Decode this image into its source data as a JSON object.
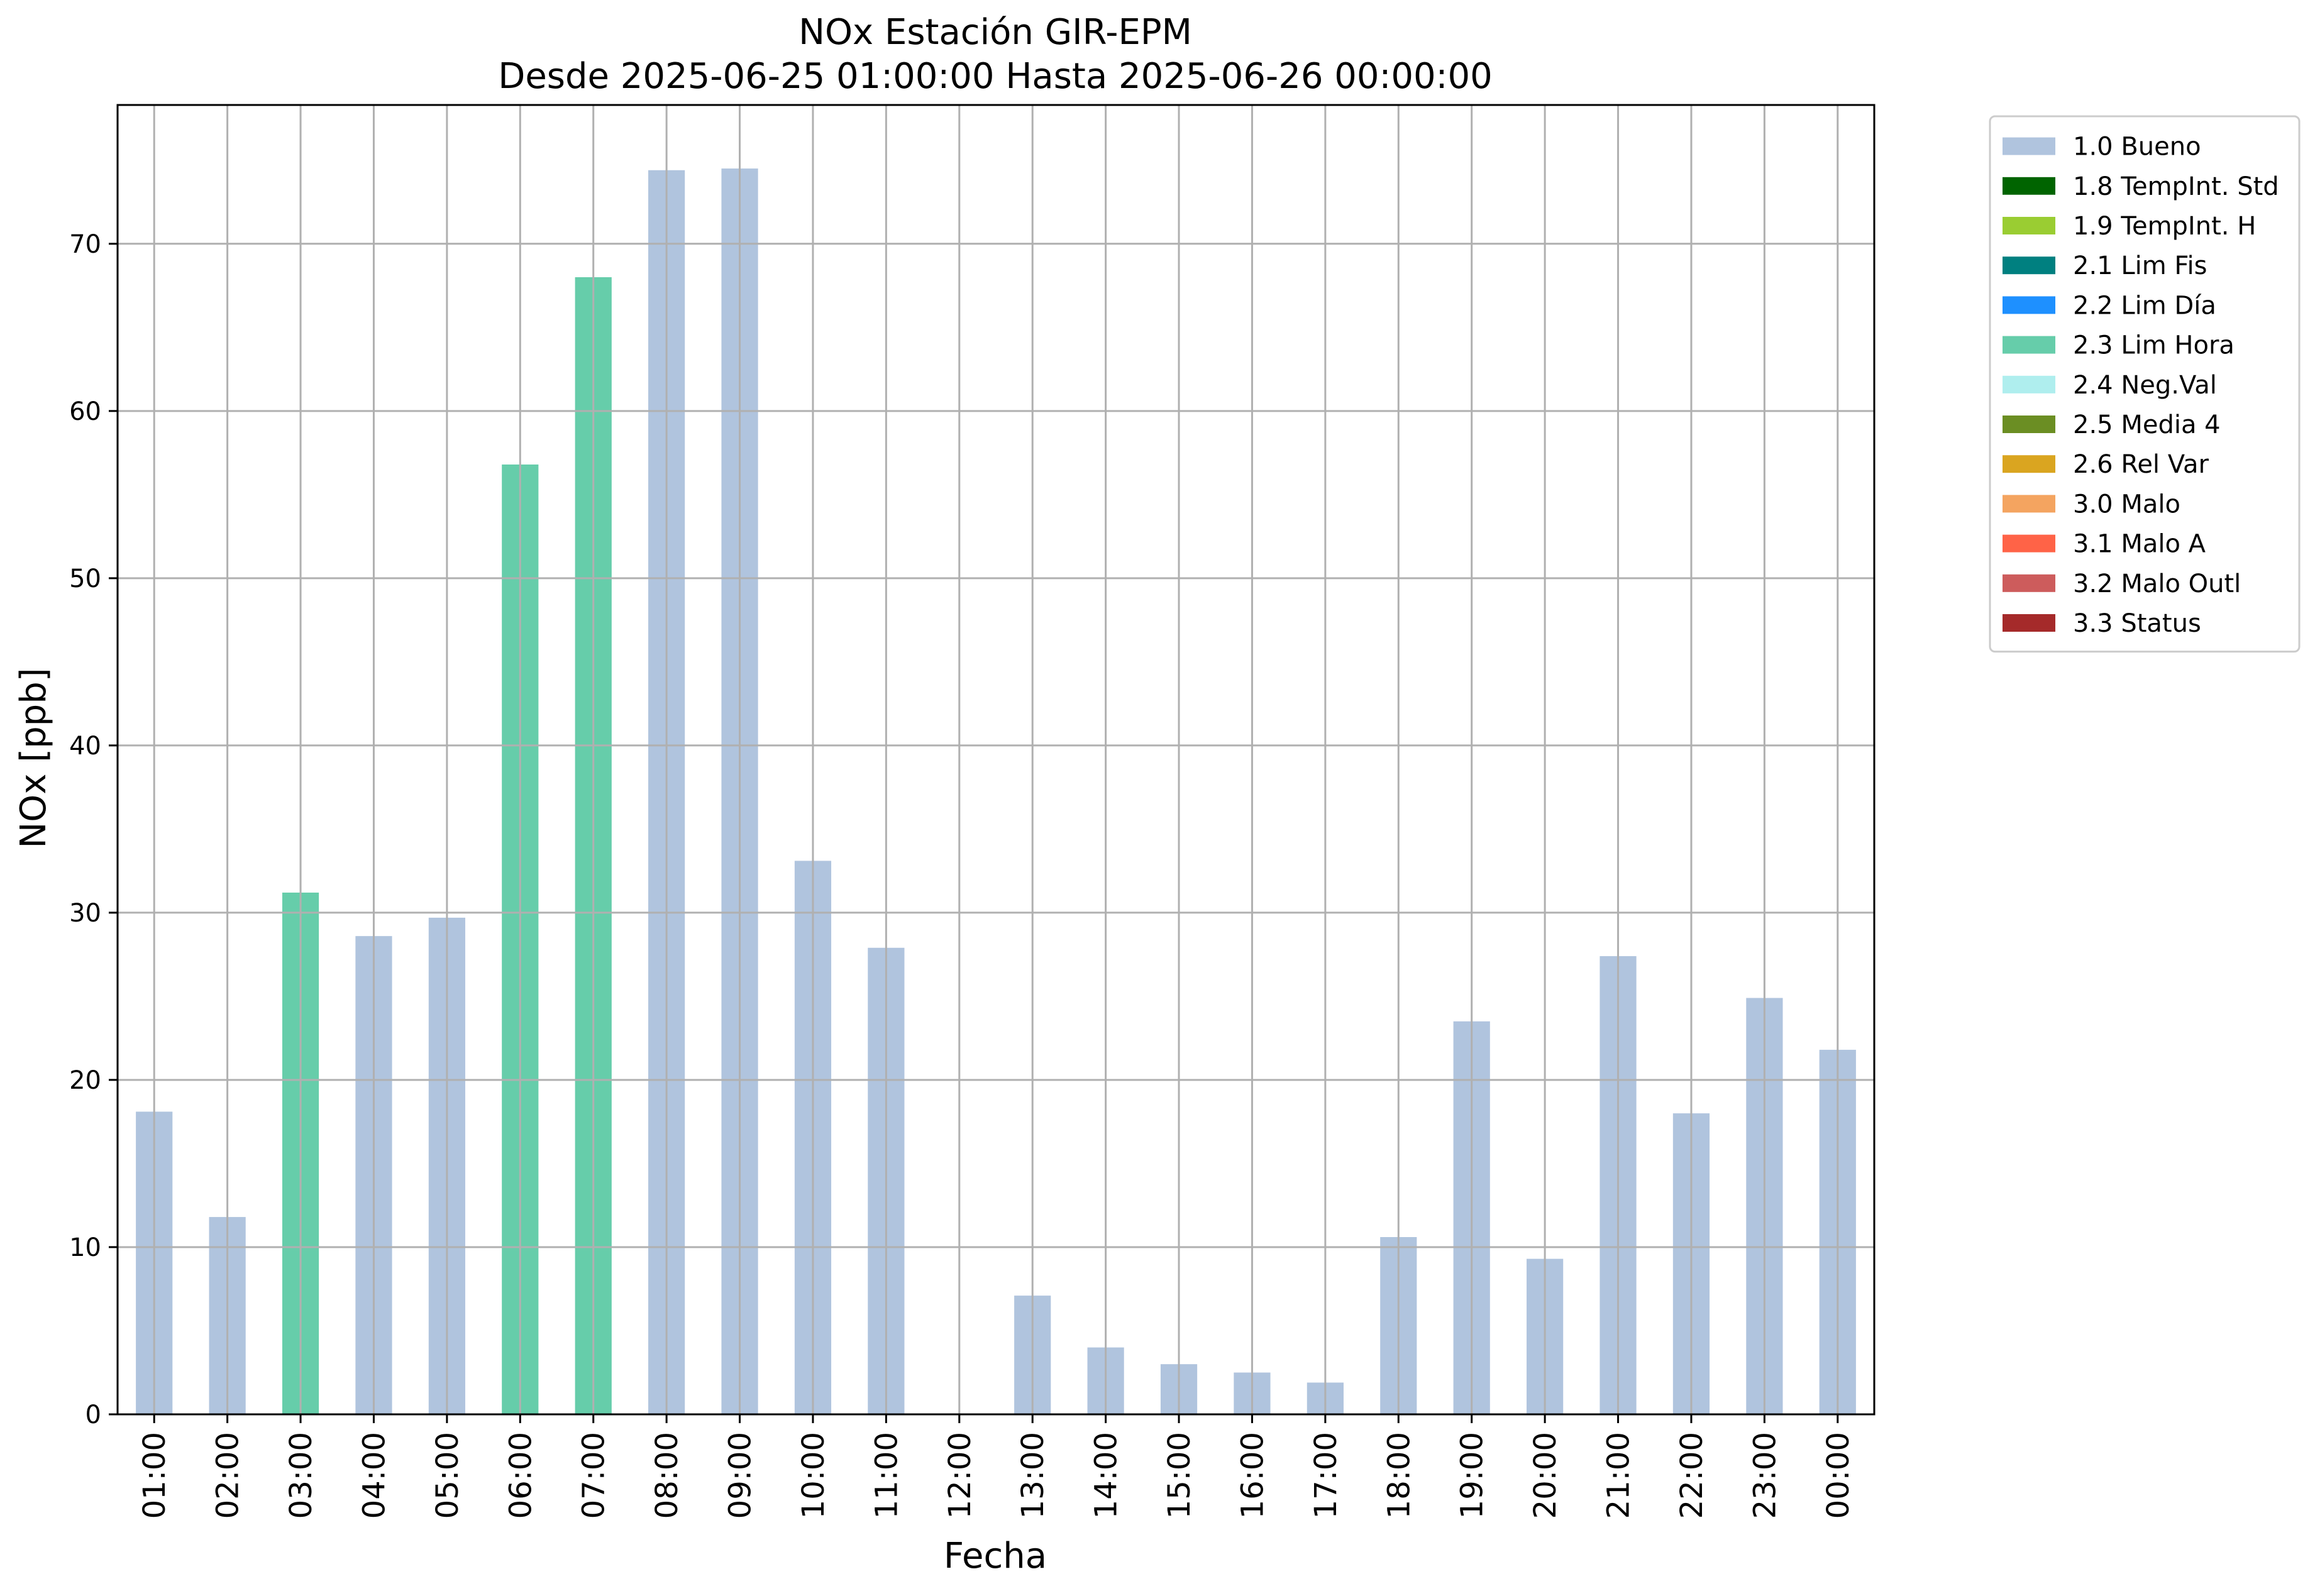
{
  "chart_data": {
    "type": "bar",
    "title_line1": "NOx Estación GIR-EPM",
    "title_line2": "Desde 2025-06-25 01:00:00 Hasta 2025-06-26 00:00:00",
    "xlabel": "Fecha",
    "ylabel": "NOx [ppb]",
    "ylim": [
      0,
      78.3
    ],
    "yticks": [
      0,
      10,
      20,
      30,
      40,
      50,
      60,
      70
    ],
    "grid": true,
    "legend_position": "outside-right-top",
    "categories": [
      "01:00",
      "02:00",
      "03:00",
      "04:00",
      "05:00",
      "06:00",
      "07:00",
      "08:00",
      "09:00",
      "10:00",
      "11:00",
      "12:00",
      "13:00",
      "14:00",
      "15:00",
      "16:00",
      "17:00",
      "18:00",
      "19:00",
      "20:00",
      "21:00",
      "22:00",
      "23:00",
      "00:00"
    ],
    "values": [
      18.1,
      11.8,
      31.2,
      28.6,
      29.7,
      56.8,
      68.0,
      74.4,
      74.5,
      33.1,
      27.9,
      null,
      7.1,
      4.0,
      3.0,
      2.5,
      1.9,
      10.6,
      23.5,
      9.3,
      27.4,
      18.0,
      24.9,
      21.8
    ],
    "flags": [
      "1.0 Bueno",
      "1.0 Bueno",
      "2.3 Lim Hora",
      "1.0 Bueno",
      "1.0 Bueno",
      "2.3 Lim Hora",
      "2.3 Lim Hora",
      "1.0 Bueno",
      "1.0 Bueno",
      "1.0 Bueno",
      "1.0 Bueno",
      null,
      "1.0 Bueno",
      "1.0 Bueno",
      "1.0 Bueno",
      "1.0 Bueno",
      "1.0 Bueno",
      "1.0 Bueno",
      "1.0 Bueno",
      "1.0 Bueno",
      "1.0 Bueno",
      "1.0 Bueno",
      "1.0 Bueno",
      "1.0 Bueno"
    ],
    "legend": [
      {
        "label": "1.0 Bueno",
        "color": "#b0c4de"
      },
      {
        "label": "1.8 TempInt. Std",
        "color": "#006400"
      },
      {
        "label": "1.9 TempInt. H",
        "color": "#9acd32"
      },
      {
        "label": "2.1 Lim Fis",
        "color": "#008080"
      },
      {
        "label": "2.2 Lim Día",
        "color": "#1e90ff"
      },
      {
        "label": "2.3 Lim Hora",
        "color": "#66cdaa"
      },
      {
        "label": "2.4 Neg.Val",
        "color": "#afeeee"
      },
      {
        "label": "2.5 Media 4",
        "color": "#6b8e23"
      },
      {
        "label": "2.6 Rel Var",
        "color": "#daa520"
      },
      {
        "label": "3.0 Malo",
        "color": "#f4a460"
      },
      {
        "label": "3.1 Malo A",
        "color": "#ff6347"
      },
      {
        "label": "3.2 Malo Outl",
        "color": "#cd5c5c"
      },
      {
        "label": "3.3 Status",
        "color": "#a52a2a"
      }
    ]
  }
}
